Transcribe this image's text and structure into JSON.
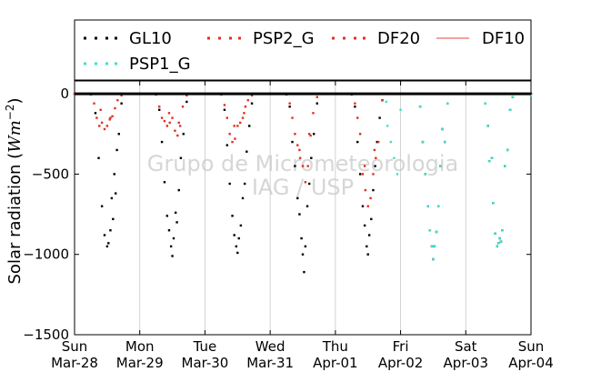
{
  "chart_data": {
    "type": "scatter",
    "ylabel_main": "Solar radiation (",
    "ylabel_unit": "Wm",
    "ylabel_exp": "−2",
    "ylabel_close": ")",
    "xlabel": "",
    "ylim": [
      -1500,
      80
    ],
    "xlim": [
      0,
      7
    ],
    "yticks": [
      0,
      -500,
      -1000,
      -1500
    ],
    "ytick_labels": [
      "0",
      "−500",
      "−1000",
      "−1500"
    ],
    "xticks": [
      {
        "x": 0,
        "day": "Sun",
        "date": "Mar-28"
      },
      {
        "x": 1,
        "day": "Mon",
        "date": "Mar-29"
      },
      {
        "x": 2,
        "day": "Tue",
        "date": "Mar-30"
      },
      {
        "x": 3,
        "day": "Wed",
        "date": "Mar-31"
      },
      {
        "x": 4,
        "day": "Thu",
        "date": "Apr-01"
      },
      {
        "x": 5,
        "day": "Fri",
        "date": "Apr-02"
      },
      {
        "x": 6,
        "day": "Sat",
        "date": "Apr-03"
      },
      {
        "x": 7,
        "day": "Sun",
        "date": "Apr-04"
      }
    ],
    "grid": "vertical",
    "legend_placement": "top",
    "watermark": [
      "Grupo de Micrometeorologia",
      "IAG / USP"
    ],
    "series": [
      {
        "name": "GL10",
        "color": "#000000",
        "marker": "dot",
        "points": [
          [
            0.0,
            0
          ],
          [
            0.25,
            0
          ],
          [
            0.32,
            -120
          ],
          [
            0.37,
            -400
          ],
          [
            0.42,
            -700
          ],
          [
            0.46,
            -880
          ],
          [
            0.5,
            -950
          ],
          [
            0.52,
            -930
          ],
          [
            0.55,
            -850
          ],
          [
            0.57,
            -650
          ],
          [
            0.59,
            -780
          ],
          [
            0.61,
            -500
          ],
          [
            0.63,
            -620
          ],
          [
            0.65,
            -350
          ],
          [
            0.68,
            -250
          ],
          [
            0.72,
            -60
          ],
          [
            0.75,
            0
          ],
          [
            1.0,
            0
          ],
          [
            1.25,
            0
          ],
          [
            1.3,
            -100
          ],
          [
            1.34,
            -300
          ],
          [
            1.38,
            -550
          ],
          [
            1.42,
            -760
          ],
          [
            1.45,
            -850
          ],
          [
            1.48,
            -950
          ],
          [
            1.5,
            -1010
          ],
          [
            1.52,
            -900
          ],
          [
            1.55,
            -740
          ],
          [
            1.57,
            -800
          ],
          [
            1.6,
            -600
          ],
          [
            1.63,
            -400
          ],
          [
            1.67,
            -250
          ],
          [
            1.72,
            -50
          ],
          [
            1.75,
            0
          ],
          [
            2.0,
            0
          ],
          [
            2.25,
            0
          ],
          [
            2.3,
            -100
          ],
          [
            2.34,
            -320
          ],
          [
            2.38,
            -560
          ],
          [
            2.42,
            -760
          ],
          [
            2.45,
            -880
          ],
          [
            2.48,
            -950
          ],
          [
            2.5,
            -990
          ],
          [
            2.52,
            -900
          ],
          [
            2.55,
            -820
          ],
          [
            2.58,
            -650
          ],
          [
            2.61,
            -560
          ],
          [
            2.64,
            -360
          ],
          [
            2.68,
            -200
          ],
          [
            2.72,
            -60
          ],
          [
            2.75,
            0
          ],
          [
            3.0,
            0
          ],
          [
            3.25,
            0
          ],
          [
            3.3,
            -80
          ],
          [
            3.34,
            -300
          ],
          [
            3.38,
            -450
          ],
          [
            3.42,
            -650
          ],
          [
            3.45,
            -750
          ],
          [
            3.48,
            -900
          ],
          [
            3.5,
            -1000
          ],
          [
            3.52,
            -1110
          ],
          [
            3.54,
            -950
          ],
          [
            3.57,
            -700
          ],
          [
            3.6,
            -560
          ],
          [
            3.63,
            -400
          ],
          [
            3.67,
            -250
          ],
          [
            3.72,
            -60
          ],
          [
            3.75,
            0
          ],
          [
            4.0,
            0
          ],
          [
            4.25,
            0
          ],
          [
            4.3,
            -80
          ],
          [
            4.34,
            -300
          ],
          [
            4.38,
            -500
          ],
          [
            4.42,
            -700
          ],
          [
            4.45,
            -820
          ],
          [
            4.48,
            -950
          ],
          [
            4.5,
            -1000
          ],
          [
            4.52,
            -880
          ],
          [
            4.55,
            -780
          ],
          [
            4.58,
            -600
          ],
          [
            4.61,
            -450
          ],
          [
            4.64,
            -300
          ],
          [
            4.68,
            -150
          ],
          [
            4.72,
            -40
          ],
          [
            4.75,
            0
          ],
          [
            5.0,
            0
          ],
          [
            5.25,
            0
          ],
          [
            5.3,
            -80
          ],
          [
            5.34,
            -300
          ],
          [
            5.38,
            -500
          ],
          [
            5.42,
            -700
          ],
          [
            5.45,
            -850
          ],
          [
            5.48,
            -950
          ],
          [
            5.5,
            -1030
          ],
          [
            5.52,
            -950
          ],
          [
            5.55,
            -860
          ],
          [
            5.58,
            -700
          ],
          [
            5.61,
            -450
          ],
          [
            5.64,
            -220
          ],
          [
            5.68,
            -300
          ],
          [
            5.72,
            -60
          ],
          [
            5.75,
            0
          ],
          [
            6.0,
            0
          ],
          [
            6.25,
            0
          ],
          [
            6.3,
            -60
          ],
          [
            6.34,
            -200
          ],
          [
            6.36,
            -420
          ],
          [
            6.4,
            -400
          ],
          [
            6.42,
            -680
          ],
          [
            6.45,
            -870
          ],
          [
            6.48,
            -950
          ],
          [
            6.5,
            -930
          ],
          [
            6.52,
            -900
          ],
          [
            6.54,
            -920
          ],
          [
            6.56,
            -850
          ],
          [
            6.6,
            -450
          ],
          [
            6.64,
            -350
          ],
          [
            6.68,
            -100
          ],
          [
            6.72,
            -20
          ],
          [
            6.75,
            0
          ],
          [
            7.0,
            0
          ]
        ]
      },
      {
        "name": "PSP1_G",
        "color": "#40e0d0",
        "marker": "dot",
        "points": [
          [
            4.78,
            -50
          ],
          [
            4.8,
            -200
          ],
          [
            4.85,
            -300
          ],
          [
            4.9,
            -400
          ],
          [
            4.95,
            -500
          ],
          [
            5.0,
            -100
          ],
          [
            5.05,
            0
          ],
          [
            5.25,
            0
          ],
          [
            5.3,
            -80
          ],
          [
            5.34,
            -300
          ],
          [
            5.38,
            -500
          ],
          [
            5.42,
            -700
          ],
          [
            5.45,
            -850
          ],
          [
            5.48,
            -950
          ],
          [
            5.5,
            -1030
          ],
          [
            5.52,
            -950
          ],
          [
            5.55,
            -860
          ],
          [
            5.58,
            -700
          ],
          [
            5.61,
            -450
          ],
          [
            5.64,
            -220
          ],
          [
            5.68,
            -300
          ],
          [
            5.72,
            -60
          ],
          [
            5.75,
            0
          ],
          [
            6.0,
            0
          ],
          [
            6.25,
            0
          ],
          [
            6.3,
            -60
          ],
          [
            6.34,
            -200
          ],
          [
            6.36,
            -420
          ],
          [
            6.4,
            -400
          ],
          [
            6.42,
            -680
          ],
          [
            6.45,
            -870
          ],
          [
            6.48,
            -950
          ],
          [
            6.5,
            -930
          ],
          [
            6.52,
            -900
          ],
          [
            6.54,
            -920
          ],
          [
            6.56,
            -850
          ],
          [
            6.6,
            -450
          ],
          [
            6.64,
            -350
          ],
          [
            6.68,
            -100
          ],
          [
            6.72,
            -20
          ],
          [
            6.75,
            0
          ],
          [
            7.0,
            -10
          ]
        ]
      },
      {
        "name": "PSP2_G",
        "color": "#e03020",
        "marker": "dot",
        "points": [
          [
            0.0,
            0
          ],
          [
            0.25,
            -5
          ],
          [
            0.3,
            -60
          ],
          [
            0.34,
            -150
          ],
          [
            0.38,
            -200
          ],
          [
            0.42,
            -180
          ],
          [
            0.46,
            -220
          ],
          [
            0.5,
            -200
          ],
          [
            0.54,
            -160
          ],
          [
            0.58,
            -140
          ],
          [
            0.62,
            -90
          ],
          [
            0.66,
            -40
          ],
          [
            0.72,
            -10
          ],
          [
            0.75,
            0
          ],
          [
            1.0,
            0
          ],
          [
            1.25,
            -5
          ],
          [
            1.3,
            -80
          ],
          [
            1.34,
            -150
          ],
          [
            1.38,
            -170
          ],
          [
            1.42,
            -200
          ],
          [
            1.46,
            -180
          ],
          [
            1.5,
            -150
          ],
          [
            1.54,
            -230
          ],
          [
            1.58,
            -260
          ],
          [
            1.62,
            -200
          ],
          [
            1.66,
            -80
          ],
          [
            1.72,
            -10
          ],
          [
            1.75,
            0
          ],
          [
            2.0,
            0
          ],
          [
            2.25,
            -5
          ],
          [
            2.3,
            -70
          ],
          [
            2.34,
            -150
          ],
          [
            2.38,
            -250
          ],
          [
            2.42,
            -300
          ],
          [
            2.46,
            -280
          ],
          [
            2.5,
            -200
          ],
          [
            2.54,
            -180
          ],
          [
            2.58,
            -150
          ],
          [
            2.62,
            -80
          ],
          [
            2.66,
            -40
          ],
          [
            2.72,
            -10
          ],
          [
            2.75,
            0
          ],
          [
            3.0,
            0
          ],
          [
            3.25,
            -5
          ],
          [
            3.3,
            -60
          ],
          [
            3.34,
            -150
          ],
          [
            3.38,
            -250
          ],
          [
            3.42,
            -320
          ],
          [
            3.46,
            -400
          ],
          [
            3.5,
            -450
          ],
          [
            3.54,
            -550
          ],
          [
            3.58,
            -450
          ],
          [
            3.62,
            -260
          ],
          [
            3.66,
            -120
          ],
          [
            3.72,
            -20
          ],
          [
            3.75,
            0
          ],
          [
            4.0,
            0
          ],
          [
            4.25,
            -5
          ],
          [
            4.3,
            -60
          ],
          [
            4.34,
            -150
          ],
          [
            4.38,
            -250
          ],
          [
            4.42,
            -500
          ],
          [
            4.46,
            -600
          ],
          [
            4.5,
            -700
          ],
          [
            4.54,
            -650
          ],
          [
            4.58,
            -500
          ],
          [
            4.62,
            -400
          ],
          [
            4.66,
            -300
          ],
          [
            4.72,
            -40
          ],
          [
            4.75,
            0
          ]
        ]
      },
      {
        "name": "DF20",
        "color": "#e03020",
        "marker": "dot",
        "points": [
          [
            0.4,
            -100
          ],
          [
            0.55,
            -150
          ],
          [
            1.45,
            -120
          ],
          [
            1.6,
            -180
          ],
          [
            2.45,
            -200
          ],
          [
            2.6,
            -120
          ],
          [
            3.45,
            -350
          ],
          [
            3.6,
            -250
          ],
          [
            4.45,
            -450
          ],
          [
            4.6,
            -350
          ]
        ]
      },
      {
        "name": "DF10",
        "color": "#f08080",
        "marker": "line",
        "points": [
          [
            0.0,
            0
          ],
          [
            1.0,
            0
          ],
          [
            2.0,
            0
          ],
          [
            3.0,
            0
          ],
          [
            4.0,
            0
          ],
          [
            5.0,
            0
          ],
          [
            6.0,
            0
          ],
          [
            7.0,
            0
          ]
        ]
      }
    ]
  }
}
